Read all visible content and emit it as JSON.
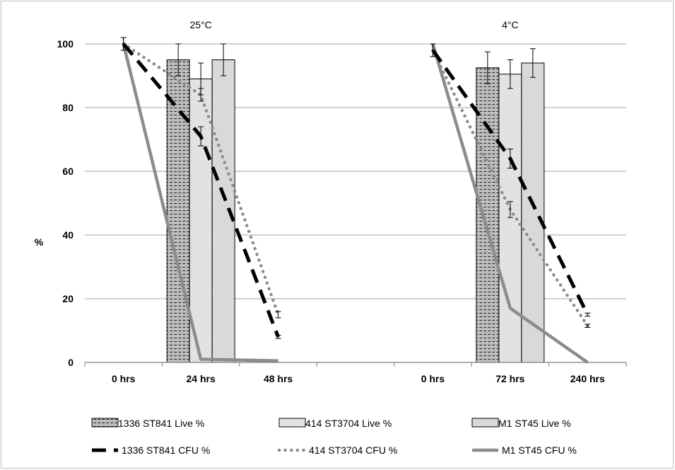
{
  "chart_data": {
    "type": "bar",
    "ylabel": "%",
    "ylim": [
      0,
      100
    ],
    "yticks": [
      0,
      20,
      40,
      60,
      80,
      100
    ],
    "grid": true,
    "legend_position": "bottom",
    "panels": [
      {
        "title": "25°C",
        "categories": [
          "0 hrs",
          "24 hrs",
          "48 hrs"
        ],
        "bar_series": [
          {
            "name": "1336 ST841  Live %",
            "values": [
              null,
              95,
              null
            ],
            "errors": [
              null,
              5,
              null
            ]
          },
          {
            "name": "414 ST3704  Live %",
            "values": [
              null,
              89,
              null
            ],
            "errors": [
              null,
              5,
              null
            ]
          },
          {
            "name": "M1 ST45 Live %",
            "values": [
              null,
              95,
              null
            ],
            "errors": [
              null,
              5,
              null
            ]
          }
        ],
        "line_series": [
          {
            "name": "1336 ST841  CFU %",
            "values": [
              100,
              71,
              8
            ],
            "errors": [
              2,
              3,
              0.5
            ]
          },
          {
            "name": "414 ST3704  CFU %",
            "values": [
              100,
              84,
              15
            ],
            "errors": [
              2,
              2,
              1
            ]
          },
          {
            "name": "M1 ST45 CFU %",
            "values": [
              100,
              1,
              0.5
            ],
            "errors": [
              null,
              null,
              null
            ]
          }
        ]
      },
      {
        "title": "4°C",
        "categories": [
          "0 hrs",
          "72 hrs",
          "240 hrs"
        ],
        "bar_series": [
          {
            "name": "1336 ST841  Live %",
            "values": [
              null,
              92.5,
              null
            ],
            "errors": [
              null,
              5,
              null
            ]
          },
          {
            "name": "414 ST3704  Live %",
            "values": [
              null,
              90.5,
              null
            ],
            "errors": [
              null,
              4.5,
              null
            ]
          },
          {
            "name": "M1 ST45 Live %",
            "values": [
              null,
              94,
              null
            ],
            "errors": [
              null,
              4.5,
              null
            ]
          }
        ],
        "line_series": [
          {
            "name": "1336 ST841  CFU %",
            "values": [
              98,
              64,
              15
            ],
            "errors": [
              2,
              3,
              0.5
            ]
          },
          {
            "name": "414 ST3704  CFU %",
            "values": [
              98,
              48,
              11.5
            ],
            "errors": [
              2,
              2.5,
              0.5
            ]
          },
          {
            "name": "M1 ST45 CFU %",
            "values": [
              100,
              17,
              0
            ],
            "errors": [
              null,
              null,
              null
            ]
          }
        ]
      }
    ]
  },
  "colors": {
    "bar_fill_1": "#bdbdbd",
    "bar_fill_2": "#e9e9e9",
    "bar_fill_3": "#d9d9d9",
    "line_1": "#000000",
    "line_2": "#8c8c8c",
    "line_3": "#8c8c8c",
    "grid": "#a6a6a6"
  }
}
